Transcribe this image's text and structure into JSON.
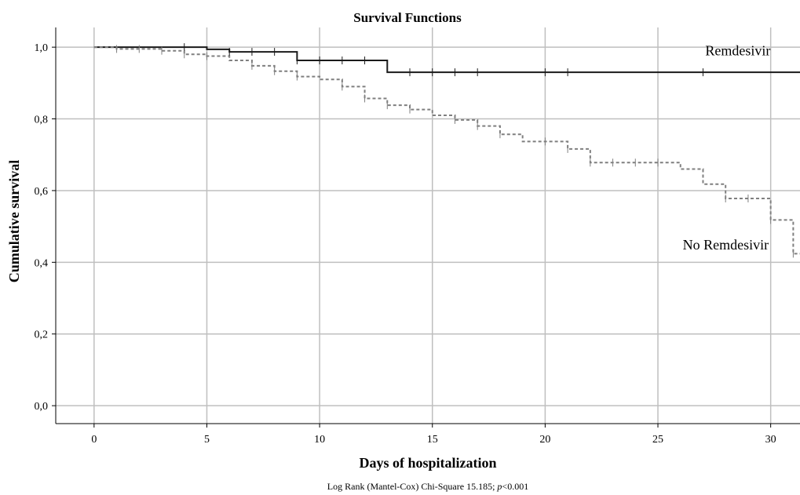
{
  "chart_data": {
    "type": "line",
    "title": "Survival Functions",
    "xlabel": "Days of hospitalization",
    "ylabel": "Cumulative survival",
    "xlim": [
      -1.7,
      31.3
    ],
    "ylim": [
      -0.05,
      1.055
    ],
    "x_ticks": [
      0,
      5,
      10,
      15,
      20,
      25,
      30
    ],
    "x_tick_labels": [
      "0",
      "5",
      "10",
      "15",
      "20",
      "25",
      "30"
    ],
    "y_ticks": [
      0.0,
      0.2,
      0.4,
      0.6,
      0.8,
      1.0
    ],
    "y_tick_labels": [
      "0,0",
      "0,2",
      "0,4",
      "0,6",
      "0,8",
      "1,0"
    ],
    "grid": true,
    "footnote": {
      "prefix": "Log Rank (Mantel-Cox) Chi-Square 15.185; ",
      "p": "p",
      "suffix": "<0.001"
    },
    "series": [
      {
        "name": "Remdesivir",
        "style": "solid",
        "color": "#1a1a1a",
        "steps": [
          [
            0,
            1.0
          ],
          [
            5,
            0.994
          ],
          [
            6,
            0.987
          ],
          [
            9,
            0.963
          ],
          [
            13,
            0.93
          ],
          [
            31.3,
            0.93
          ]
        ],
        "censor_x": [
          4,
          6,
          7,
          8,
          9,
          10,
          11,
          12,
          14,
          15,
          16,
          17,
          20,
          21,
          27
        ]
      },
      {
        "name": "No Remdesivir",
        "style": "dashed",
        "color": "#7f7f7f",
        "steps": [
          [
            0,
            1.0
          ],
          [
            1,
            0.995
          ],
          [
            3,
            0.99
          ],
          [
            4,
            0.98
          ],
          [
            5,
            0.975
          ],
          [
            6,
            0.963
          ],
          [
            7,
            0.948
          ],
          [
            8,
            0.933
          ],
          [
            9,
            0.918
          ],
          [
            10,
            0.91
          ],
          [
            11,
            0.89
          ],
          [
            12,
            0.857
          ],
          [
            13,
            0.838
          ],
          [
            14,
            0.826
          ],
          [
            15,
            0.81
          ],
          [
            16,
            0.797
          ],
          [
            17,
            0.78
          ],
          [
            18,
            0.757
          ],
          [
            19,
            0.737
          ],
          [
            21,
            0.716
          ],
          [
            22,
            0.678
          ],
          [
            26,
            0.66
          ],
          [
            27,
            0.618
          ],
          [
            28,
            0.578
          ],
          [
            30,
            0.518
          ],
          [
            31,
            0.424
          ],
          [
            31.3,
            0.424
          ]
        ],
        "censor_x": [
          1,
          2,
          3,
          4,
          5,
          7,
          8,
          9,
          11,
          12,
          13,
          14,
          16,
          17,
          18,
          20,
          21,
          22,
          23,
          24,
          25,
          28,
          29,
          30,
          31
        ]
      }
    ],
    "annotations": [
      {
        "text": "Remdesivir",
        "x": 27.1,
        "y": 0.977
      },
      {
        "text": "No Remdesivir",
        "x": 26.1,
        "y": 0.436
      }
    ]
  }
}
